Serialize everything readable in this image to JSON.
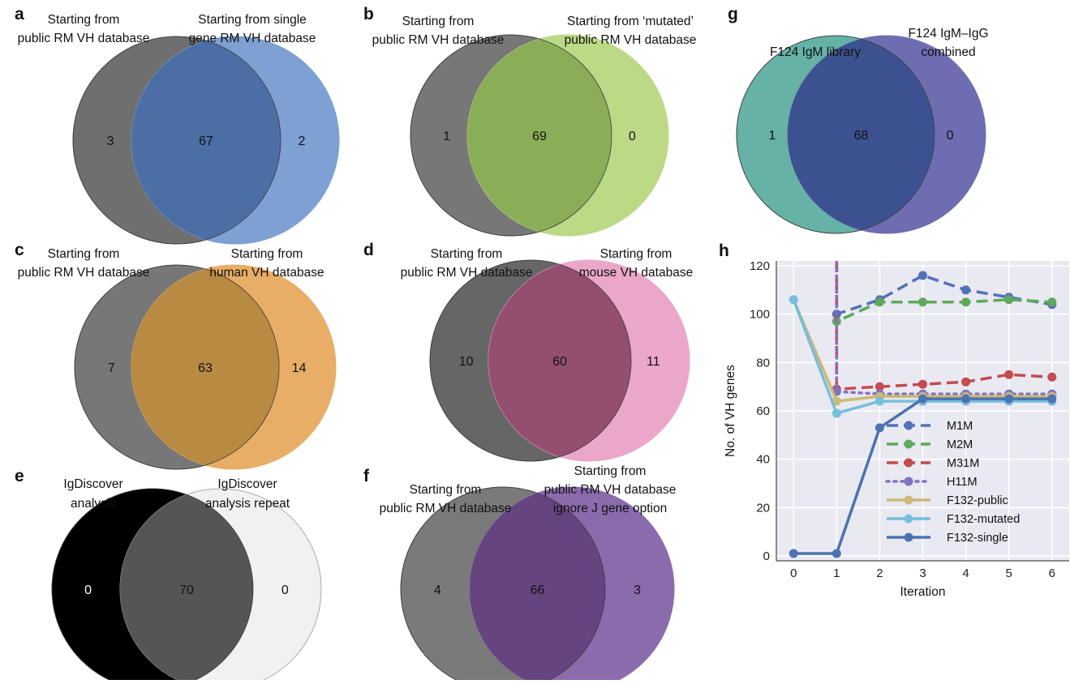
{
  "panels": [
    {
      "letter": "a",
      "left_label": [
        "Starting from",
        "public RM VH database"
      ],
      "right_label": [
        "Starting from single",
        "gene RM VH database"
      ],
      "left_only": "3",
      "overlap": "67",
      "right_only": "2"
    },
    {
      "letter": "b",
      "left_label": [
        "Starting from",
        "public RM VH database"
      ],
      "right_label": [
        "Starting from ‘mutated’",
        "public RM VH database"
      ],
      "left_only": "1",
      "overlap": "69",
      "right_only": "0"
    },
    {
      "letter": "g",
      "left_label": [
        "F124 IgM library"
      ],
      "right_label": [
        "F124 IgM–IgG",
        "combined"
      ],
      "left_only": "1",
      "overlap": "68",
      "right_only": "0"
    },
    {
      "letter": "c",
      "left_label": [
        "Starting from",
        "public RM VH database"
      ],
      "right_label": [
        "Starting from",
        "human VH database"
      ],
      "left_only": "7",
      "overlap": "63",
      "right_only": "14"
    },
    {
      "letter": "d",
      "left_label": [
        "Starting from",
        "public RM VH database"
      ],
      "right_label": [
        "Starting from",
        "mouse VH database"
      ],
      "left_only": "10",
      "overlap": "60",
      "right_only": "11"
    },
    {
      "letter": "e",
      "left_label": [
        "IgDiscover",
        "analysis"
      ],
      "right_label": [
        "IgDiscover",
        "analysis repeat"
      ],
      "left_only": "0",
      "overlap": "70",
      "right_only": "0"
    },
    {
      "letter": "f",
      "left_label": [
        "Starting from",
        "public RM VH database"
      ],
      "right_label": [
        "Starting from",
        "public RM VH database",
        "ignore J gene option"
      ],
      "left_only": "4",
      "overlap": "66",
      "right_only": "3"
    }
  ],
  "colors": {
    "a": {
      "left": "#6f6f6f",
      "right": "#7ea0d3",
      "overlap": "#4b6fa4"
    },
    "b": {
      "left": "#777777",
      "right": "#bcd985",
      "overlap": "#8aae58"
    },
    "g": {
      "left": "#66b2a7",
      "right": "#6f6db1",
      "overlap": "#3c5290"
    },
    "c": {
      "left": "#777777",
      "right": "#e8ad66",
      "overlap": "#b98a42"
    },
    "d": {
      "left": "#666666",
      "right": "#eaa7c9",
      "overlap": "#944f70"
    },
    "e": {
      "left": "#000000",
      "right": "#f1f1f1",
      "overlap": "#555555"
    },
    "f": {
      "left": "#7a7a7a",
      "right": "#8a6bac",
      "overlap": "#65447f"
    }
  },
  "chart_data": {
    "type": "line",
    "panel_letter": "h",
    "xlabel": "Iteration",
    "ylabel": "No. of VH genes",
    "x": [
      0,
      1,
      2,
      3,
      4,
      5,
      6
    ],
    "xlim": [
      -0.4,
      6.4
    ],
    "ylim": [
      -2,
      122
    ],
    "yticks": [
      0,
      20,
      40,
      60,
      80,
      100,
      120
    ],
    "grid": true,
    "background": "#e9e9f1",
    "legend_position": "center-right",
    "series": [
      {
        "name": "M1M",
        "color": "#5470b7",
        "dash": "dashed",
        "values": [
          null,
          100,
          106,
          116,
          110,
          107,
          104
        ],
        "spike_top": 122
      },
      {
        "name": "M2M",
        "color": "#5ea95d",
        "dash": "dashed",
        "values": [
          null,
          97,
          105,
          105,
          105,
          106,
          105
        ],
        "spike_top": 122
      },
      {
        "name": "M31M",
        "color": "#c44b4f",
        "dash": "dashed",
        "values": [
          null,
          69,
          70,
          71,
          72,
          75,
          74
        ],
        "spike_top": 122
      },
      {
        "name": "H11M",
        "color": "#8271c2",
        "dash": "dotted",
        "values": [
          null,
          68,
          67,
          67,
          67,
          67,
          67
        ],
        "spike_top": 122
      },
      {
        "name": "F132-public",
        "color": "#ccb974",
        "dash": "solid",
        "values": [
          106,
          64,
          66,
          66,
          66,
          66,
          66
        ]
      },
      {
        "name": "F132-mutated",
        "color": "#77bedb",
        "dash": "solid",
        "values": [
          106,
          59,
          64,
          64,
          64,
          64,
          64
        ]
      },
      {
        "name": "F132-single",
        "color": "#4c72b0",
        "dash": "solid",
        "values": [
          1,
          1,
          53,
          65,
          65,
          65,
          65
        ]
      }
    ]
  }
}
